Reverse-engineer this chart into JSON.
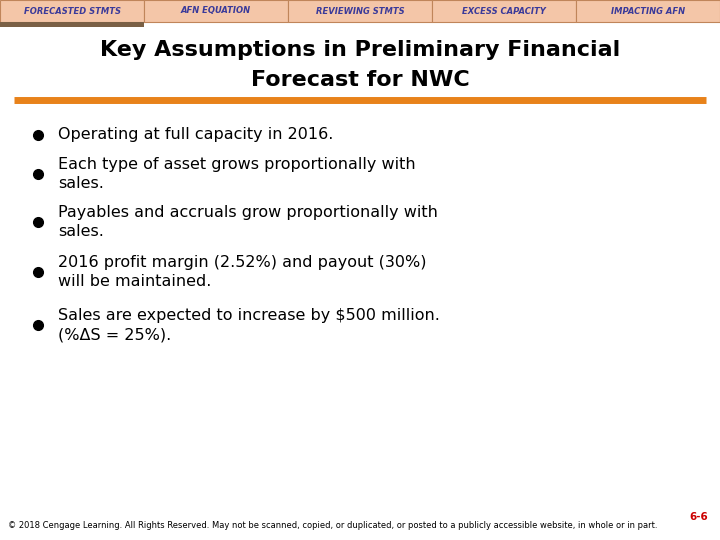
{
  "tab_labels": [
    "FORECASTED STMTS",
    "AFN EQUATION",
    "REVIEWING STMTS",
    "EXCESS CAPACITY",
    "IMPACTING AFN"
  ],
  "tab_bg_color": "#F4C6A8",
  "tab_border_color": "#C0855A",
  "active_tab_underline_color": "#7A6045",
  "title_line1": "Key Assumptions in Preliminary Financial",
  "title_line2": "Forecast for NWC",
  "title_fontsize": 16,
  "title_color": "#000000",
  "divider_color": "#E8821A",
  "divider_linewidth": 5,
  "bg_color": "#FFFFFF",
  "bullet_points": [
    "Operating at full capacity in 2016.",
    "Each type of asset grows proportionally with\nsales.",
    "Payables and accruals grow proportionally with\nsales.",
    "2016 profit margin (2.52%) and payout (30%)\nwill be maintained.",
    "Sales are expected to increase by $500 million.\n(%ΔS = 25%)."
  ],
  "bullet_fontsize": 11.5,
  "bullet_color": "#000000",
  "footnote": "© 2018 Cengage Learning. All Rights Reserved. May not be scanned, copied, or duplicated, or posted to a publicly accessible website, in whole or in part.",
  "footnote_fontsize": 6.0,
  "page_number": "6-6",
  "page_number_color": "#CC0000",
  "page_number_fontsize": 7.5
}
